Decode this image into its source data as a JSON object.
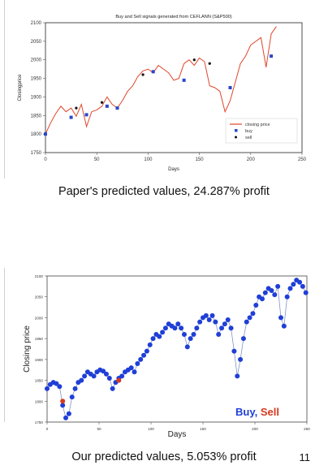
{
  "slide": {
    "caption_top": "Paper's predicted values, 24.287% profit",
    "caption_bottom": "Our predicted values, 5.053% profit",
    "page_number": "11"
  },
  "chart_data": [
    {
      "type": "line",
      "title": "Buy and Sell signals generated from CEFLANN (S&P500)",
      "xlabel": "Days",
      "ylabel": "Closingprice",
      "xlim": [
        0,
        250
      ],
      "ylim": [
        1750,
        2100
      ],
      "xticks": [
        0,
        50,
        100,
        150,
        200,
        250
      ],
      "yticks": [
        1750,
        1800,
        1850,
        1900,
        1950,
        2000,
        2050,
        2100
      ],
      "legend": {
        "position": "lower-right",
        "entries": [
          "closing price",
          "buy",
          "sell"
        ]
      },
      "colors": {
        "line": "#e0452b",
        "buy": "#2a47c9",
        "sell": "#111111"
      },
      "series": [
        {
          "name": "closing price",
          "x": [
            0,
            5,
            10,
            15,
            20,
            25,
            30,
            35,
            40,
            45,
            50,
            55,
            60,
            65,
            70,
            75,
            80,
            85,
            90,
            95,
            100,
            105,
            110,
            115,
            120,
            125,
            130,
            135,
            140,
            145,
            150,
            155,
            160,
            165,
            170,
            175,
            180,
            185,
            190,
            195,
            200,
            205,
            210,
            215,
            220,
            225
          ],
          "y": [
            1800,
            1830,
            1855,
            1875,
            1860,
            1870,
            1848,
            1880,
            1820,
            1860,
            1865,
            1875,
            1900,
            1880,
            1870,
            1890,
            1915,
            1930,
            1955,
            1970,
            1975,
            1965,
            1985,
            1975,
            1965,
            1945,
            1950,
            1990,
            2000,
            1985,
            2005,
            1995,
            1930,
            1925,
            1915,
            1860,
            1890,
            1940,
            1990,
            2010,
            2040,
            2050,
            2060,
            1980,
            2070,
            2090
          ]
        },
        {
          "name": "buy",
          "x": [
            0,
            25,
            40,
            60,
            70,
            105,
            135,
            180,
            220
          ],
          "y": [
            1800,
            1845,
            1852,
            1875,
            1870,
            1968,
            1945,
            1925,
            2010
          ]
        },
        {
          "name": "sell",
          "x": [
            30,
            55,
            95,
            145,
            160
          ],
          "y": [
            1870,
            1885,
            1960,
            2000,
            1990
          ]
        }
      ]
    },
    {
      "type": "scatter",
      "title": "",
      "xlabel": "Days",
      "ylabel": "Closing price",
      "xlim": [
        0,
        250
      ],
      "ylim": [
        1750,
        2100
      ],
      "xticks": [
        0,
        50,
        100,
        150,
        200,
        250
      ],
      "yticks": [
        1750,
        1800,
        1850,
        1900,
        1950,
        2000,
        2050,
        2100
      ],
      "legend_text": {
        "buy": "Buy",
        "separator": ", ",
        "sell": "Sell"
      },
      "colors": {
        "line": "#7f95c9",
        "buy": "#1f3fd6",
        "sell": "#d63a1f"
      },
      "series": [
        {
          "name": "Buy",
          "x": [
            0,
            3,
            6,
            9,
            12,
            15,
            18,
            21,
            24,
            27,
            30,
            33,
            36,
            39,
            42,
            45,
            48,
            51,
            54,
            57,
            60,
            63,
            66,
            69,
            72,
            75,
            78,
            81,
            84,
            87,
            90,
            93,
            96,
            99,
            102,
            105,
            108,
            111,
            114,
            117,
            120,
            123,
            126,
            129,
            132,
            135,
            138,
            141,
            144,
            147,
            150,
            153,
            156,
            159,
            162,
            165,
            168,
            171,
            174,
            177,
            180,
            183,
            186,
            189,
            192,
            195,
            198,
            201,
            204,
            207,
            210,
            213,
            216,
            219,
            222,
            225,
            228,
            231,
            234,
            237,
            240,
            243,
            246,
            249
          ],
          "y": [
            1830,
            1840,
            1845,
            1842,
            1835,
            1790,
            1760,
            1770,
            1810,
            1830,
            1845,
            1850,
            1860,
            1870,
            1865,
            1860,
            1870,
            1875,
            1872,
            1865,
            1855,
            1830,
            1845,
            1855,
            1860,
            1870,
            1875,
            1880,
            1870,
            1890,
            1900,
            1910,
            1920,
            1935,
            1950,
            1960,
            1955,
            1965,
            1975,
            1985,
            1980,
            1975,
            1985,
            1975,
            1960,
            1930,
            1950,
            1960,
            1975,
            1990,
            2000,
            2005,
            1995,
            2005,
            1990,
            1960,
            1975,
            1985,
            1995,
            1975,
            1920,
            1860,
            1900,
            1950,
            1990,
            2000,
            2010,
            2030,
            2050,
            2045,
            2060,
            2070,
            2065,
            2055,
            2075,
            2000,
            1980,
            2050,
            2070,
            2080,
            2090,
            2085,
            2075,
            2060
          ]
        },
        {
          "name": "Sell",
          "x": [
            15,
            69
          ],
          "y": [
            1800,
            1850
          ]
        }
      ]
    }
  ]
}
